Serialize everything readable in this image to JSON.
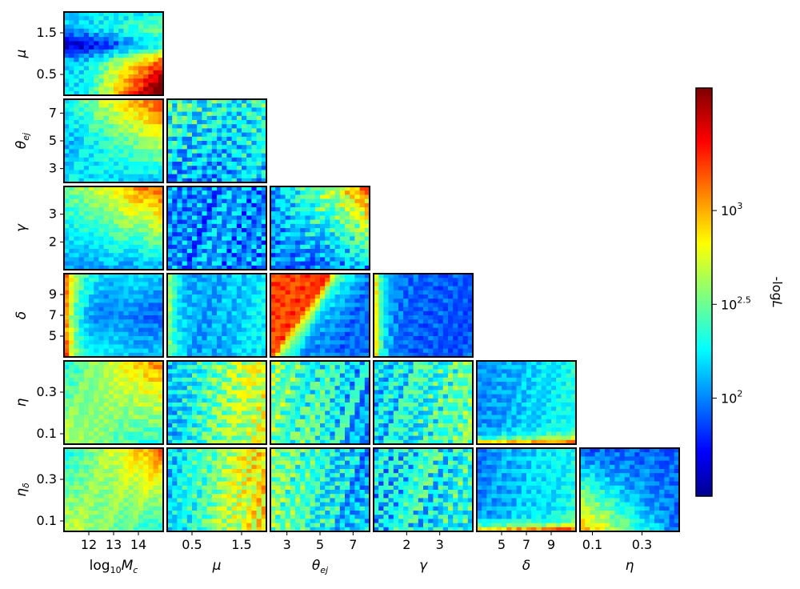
{
  "chart_data": {
    "type": "heatmap",
    "layout": "corner-plot",
    "parameters": [
      {
        "key": "logMc",
        "label_parts": [
          "log",
          "10",
          "M",
          "c"
        ],
        "range": [
          11.0,
          15.0
        ],
        "ticks": [
          12,
          13,
          14
        ],
        "tick_labels": [
          "12",
          "13",
          "14"
        ]
      },
      {
        "key": "mu",
        "label_parts": [
          "μ"
        ],
        "range": [
          0.0,
          2.0
        ],
        "ticks": [
          0.5,
          1.5
        ],
        "tick_labels": [
          "0.5",
          "1.5"
        ]
      },
      {
        "key": "theta_ej",
        "label_parts": [
          "θ",
          "ej"
        ],
        "range": [
          2.0,
          8.0
        ],
        "ticks": [
          3,
          5,
          7
        ],
        "tick_labels": [
          "3",
          "5",
          "7"
        ]
      },
      {
        "key": "gamma",
        "label_parts": [
          "γ"
        ],
        "range": [
          1.0,
          4.0
        ],
        "ticks": [
          2,
          3
        ],
        "tick_labels": [
          "2",
          "3"
        ]
      },
      {
        "key": "delta",
        "label_parts": [
          "δ"
        ],
        "range": [
          3.0,
          11.0
        ],
        "ticks": [
          5,
          7,
          9
        ],
        "tick_labels": [
          "5",
          "7",
          "9"
        ]
      },
      {
        "key": "eta",
        "label_parts": [
          "η"
        ],
        "range": [
          0.05,
          0.45
        ],
        "ticks": [
          0.1,
          0.3
        ],
        "tick_labels": [
          "0.1",
          "0.3"
        ]
      },
      {
        "key": "eta_delta",
        "label_parts": [
          "η",
          "δ"
        ],
        "range": [
          0.05,
          0.45
        ],
        "ticks": [
          0.1,
          0.3
        ],
        "tick_labels": [
          "0.1",
          "0.3"
        ]
      }
    ],
    "grid_cells_per_axis": 20,
    "colorbar": {
      "label": "-log",
      "label_italic": "L",
      "scale": "log",
      "colormap": "jet",
      "range": [
        30,
        4500
      ],
      "ticks": [
        {
          "base": "10",
          "exp": "3",
          "value": 1000
        },
        {
          "base": "10",
          "exp": "2.5",
          "value": 316.2
        },
        {
          "base": "10",
          "exp": "2",
          "value": 100
        }
      ]
    }
  }
}
